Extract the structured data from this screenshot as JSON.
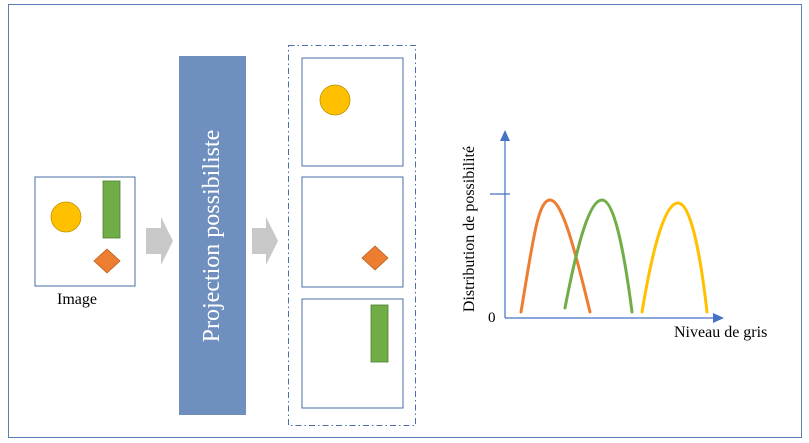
{
  "labels": {
    "image": "Image",
    "projection": "Projection possibiliste",
    "y_axis": "Distribution de possibilité",
    "x_axis": "Niveau de gris",
    "origin": "0"
  },
  "colors": {
    "frame_border": "#5b7fb5",
    "projection_block": "#6f8fbf",
    "arrow_fill": "#c8c8c8",
    "panel_border": "#4a6fa5",
    "axis": "#4472c4",
    "circle": "#ffc000",
    "diamond": "#ed7d31",
    "rectangle": "#70ad47",
    "curve_orange": "#ed7d31",
    "curve_green": "#70ad47",
    "curve_yellow": "#ffc000"
  },
  "icons": [
    "circle-shape-icon",
    "rectangle-shape-icon",
    "diamond-shape-icon",
    "arrow-right-icon"
  ]
}
